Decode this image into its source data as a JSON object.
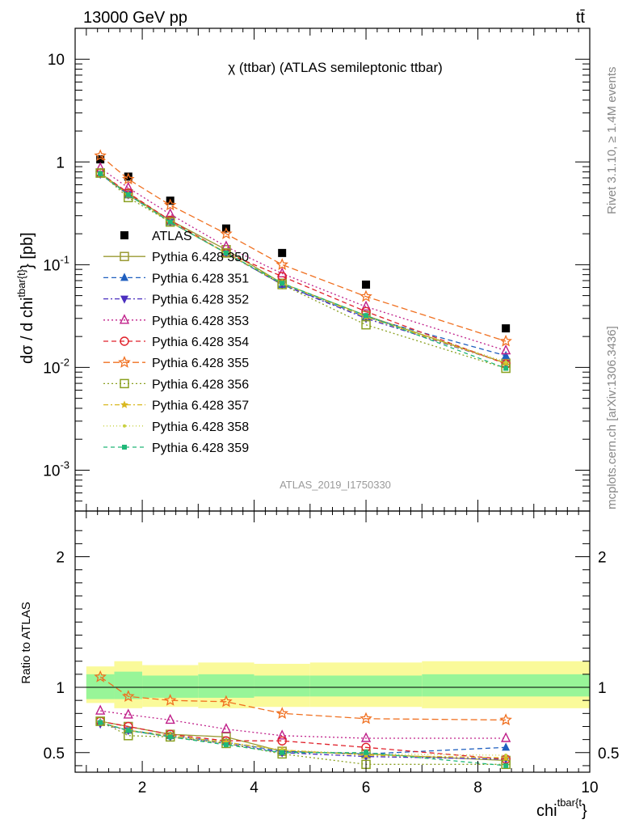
{
  "header": {
    "left": "13000 GeV pp",
    "right": "tt̄"
  },
  "side_texts": {
    "rivet": "Rivet 3.1.10, ≥ 1.4M events",
    "mcplots": "mcplots.cern.ch [arXiv:1306.3436]"
  },
  "chart_data": [
    {
      "type": "line",
      "panel": "main",
      "title": "χ (ttbar) (ATLAS semileptonic ttbar)",
      "watermark": "ATLAS_2019_I1750330",
      "ylabel": "dσ / d chi^{tbar{t}} [pb]",
      "y_scale": "log",
      "xlim": [
        0.8,
        10
      ],
      "ylim": [
        0.0004,
        20
      ],
      "y_tick_labels": [
        "10^{-3}",
        "10^{-2}",
        "10^{-1}",
        "1",
        "10"
      ],
      "legend_position": "center-left",
      "x": [
        1.25,
        1.75,
        2.5,
        3.5,
        4.5,
        6.0,
        8.5
      ],
      "bins": [
        [
          1.0,
          1.5
        ],
        [
          1.5,
          2.0
        ],
        [
          2.0,
          3.0
        ],
        [
          3.0,
          4.0
        ],
        [
          4.0,
          5.0
        ],
        [
          5.0,
          7.0
        ],
        [
          7.0,
          10.0
        ]
      ],
      "series": [
        {
          "name": "ATLAS",
          "color": "#000000",
          "marker": "square",
          "values": [
            1.06,
            0.72,
            0.42,
            0.225,
            0.13,
            0.064,
            0.024
          ]
        },
        {
          "name": "Pythia 6.428 350",
          "color": "#9a9a32",
          "marker": "open-square",
          "dash": "solid",
          "values": [
            0.78,
            0.49,
            0.27,
            0.14,
            0.066,
            0.032,
            0.011
          ]
        },
        {
          "name": "Pythia 6.428 351",
          "color": "#1f5fbf",
          "marker": "triangle-up",
          "dash": "6,4",
          "values": [
            0.76,
            0.48,
            0.26,
            0.13,
            0.064,
            0.031,
            0.013
          ]
        },
        {
          "name": "Pythia 6.428 352",
          "color": "#4b2fbf",
          "marker": "triangle-down",
          "dash": "6,3,2,3",
          "values": [
            0.76,
            0.48,
            0.26,
            0.13,
            0.064,
            0.03,
            0.011
          ]
        },
        {
          "name": "Pythia 6.428 353",
          "color": "#c0208a",
          "marker": "open-triangle",
          "dash": "2,3",
          "values": [
            0.87,
            0.56,
            0.31,
            0.15,
            0.082,
            0.039,
            0.0146
          ]
        },
        {
          "name": "Pythia 6.428 354",
          "color": "#e0202a",
          "marker": "open-circle",
          "dash": "6,4",
          "values": [
            0.78,
            0.5,
            0.27,
            0.13,
            0.077,
            0.035,
            0.0108
          ]
        },
        {
          "name": "Pythia 6.428 355",
          "color": "#f07020",
          "marker": "open-star",
          "dash": "8,4",
          "values": [
            1.15,
            0.68,
            0.38,
            0.2,
            0.1,
            0.049,
            0.018
          ]
        },
        {
          "name": "Pythia 6.428 356",
          "color": "#8aa020",
          "marker": "open-square",
          "dash": "2,3",
          "values": [
            0.78,
            0.45,
            0.26,
            0.13,
            0.064,
            0.026,
            0.0098
          ]
        },
        {
          "name": "Pythia 6.428 357",
          "color": "#d9b820",
          "marker": "star-small",
          "dash": "6,3,2,3",
          "values": [
            0.77,
            0.48,
            0.26,
            0.13,
            0.066,
            0.031,
            0.011
          ]
        },
        {
          "name": "Pythia 6.428 358",
          "color": "#c8d040",
          "marker": "dot",
          "dash": "1,3",
          "values": [
            0.77,
            0.48,
            0.26,
            0.13,
            0.066,
            0.032,
            0.0113
          ]
        },
        {
          "name": "Pythia 6.428 359",
          "color": "#20b878",
          "marker": "small-square",
          "dash": "5,4",
          "values": [
            0.77,
            0.48,
            0.26,
            0.13,
            0.066,
            0.032,
            0.0098
          ]
        }
      ]
    },
    {
      "type": "line",
      "panel": "ratio",
      "xlabel": "chi^{tbar{t}}",
      "ylabel": "Ratio to ATLAS",
      "xlim": [
        0.8,
        10
      ],
      "ylim": [
        0.35,
        2.35
      ],
      "x_tick_labels": [
        "2",
        "4",
        "6",
        "8",
        "10"
      ],
      "y_tick_labels": [
        "0.5",
        "1",
        "2"
      ],
      "x": [
        1.25,
        1.75,
        2.5,
        3.5,
        4.5,
        6.0,
        8.5
      ],
      "bands": {
        "bins": [
          [
            1.0,
            1.5
          ],
          [
            1.5,
            2.0
          ],
          [
            2.0,
            3.0
          ],
          [
            3.0,
            4.0
          ],
          [
            4.0,
            5.0
          ],
          [
            5.0,
            7.0
          ],
          [
            7.0,
            10.0
          ]
        ],
        "inner": [
          [
            0.91,
            1.1
          ],
          [
            0.91,
            1.12
          ],
          [
            0.92,
            1.09
          ],
          [
            0.92,
            1.1
          ],
          [
            0.93,
            1.09
          ],
          [
            0.93,
            1.09
          ],
          [
            0.93,
            1.1
          ]
        ],
        "outer": [
          [
            0.88,
            1.16
          ],
          [
            0.84,
            1.2
          ],
          [
            0.85,
            1.17
          ],
          [
            0.84,
            1.19
          ],
          [
            0.85,
            1.18
          ],
          [
            0.85,
            1.19
          ],
          [
            0.84,
            1.2
          ]
        ],
        "inner_color": "#98f598",
        "outer_color": "#fafa9a"
      },
      "series": [
        {
          "name": "Pythia 6.428 350",
          "color": "#9a9a32",
          "marker": "open-square",
          "dash": "solid",
          "values": [
            0.74,
            0.7,
            0.64,
            0.62,
            0.51,
            0.49,
            0.44
          ]
        },
        {
          "name": "Pythia 6.428 351",
          "color": "#1f5fbf",
          "marker": "triangle-up",
          "dash": "6,4",
          "values": [
            0.73,
            0.67,
            0.63,
            0.58,
            0.51,
            0.49,
            0.54
          ]
        },
        {
          "name": "Pythia 6.428 352",
          "color": "#4b2fbf",
          "marker": "triangle-down",
          "dash": "6,3,2,3",
          "values": [
            0.72,
            0.67,
            0.62,
            0.57,
            0.5,
            0.47,
            0.45
          ]
        },
        {
          "name": "Pythia 6.428 353",
          "color": "#c0208a",
          "marker": "open-triangle",
          "dash": "2,3",
          "values": [
            0.82,
            0.79,
            0.75,
            0.68,
            0.63,
            0.61,
            0.61
          ]
        },
        {
          "name": "Pythia 6.428 354",
          "color": "#e0202a",
          "marker": "open-circle",
          "dash": "6,4",
          "values": [
            0.74,
            0.7,
            0.64,
            0.59,
            0.59,
            0.54,
            0.45
          ]
        },
        {
          "name": "Pythia 6.428 355",
          "color": "#f07020",
          "marker": "open-star",
          "dash": "8,4",
          "values": [
            1.08,
            0.93,
            0.9,
            0.89,
            0.8,
            0.76,
            0.75
          ]
        },
        {
          "name": "Pythia 6.428 356",
          "color": "#8aa020",
          "marker": "open-square",
          "dash": "2,3",
          "values": [
            0.74,
            0.63,
            0.62,
            0.57,
            0.49,
            0.41,
            0.41
          ]
        },
        {
          "name": "Pythia 6.428 357",
          "color": "#d9b820",
          "marker": "star-small",
          "dash": "6,3,2,3",
          "values": [
            0.73,
            0.67,
            0.63,
            0.58,
            0.52,
            0.48,
            0.46
          ]
        },
        {
          "name": "Pythia 6.428 358",
          "color": "#c8d040",
          "marker": "dot",
          "dash": "1,3",
          "values": [
            0.73,
            0.67,
            0.62,
            0.57,
            0.52,
            0.49,
            0.48
          ]
        },
        {
          "name": "Pythia 6.428 359",
          "color": "#20b878",
          "marker": "small-square",
          "dash": "5,4",
          "values": [
            0.73,
            0.67,
            0.62,
            0.56,
            0.5,
            0.5,
            0.4
          ]
        }
      ]
    }
  ]
}
